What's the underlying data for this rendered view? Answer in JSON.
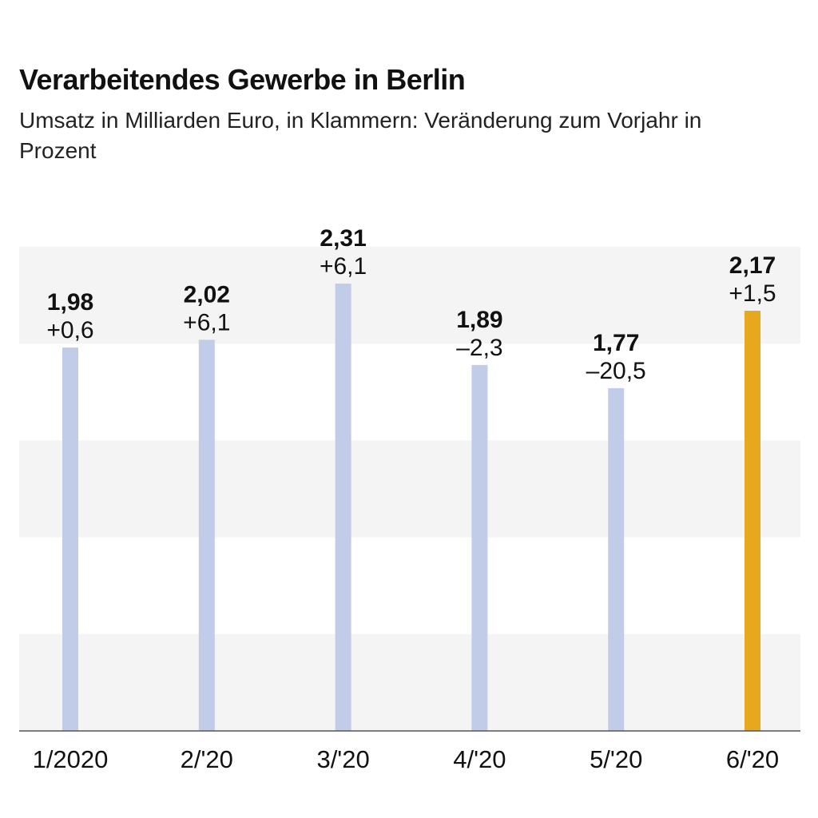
{
  "title": "Verarbeitendes Gewerbe in Berlin",
  "subtitle": "Umsatz in Milliarden Euro, in Klammern: Veränderung zum Vorjahr in Prozent",
  "colors": {
    "bar_default": "#c0cce8",
    "bar_highlight": "#e6a81d",
    "band": "#f4f4f4",
    "axis": "#555555"
  },
  "chart_data": {
    "type": "bar",
    "categories": [
      "1/2020",
      "2/'20",
      "3/'20",
      "4/'20",
      "5/'20",
      "6/'20"
    ],
    "values": [
      1.98,
      2.02,
      2.31,
      1.89,
      1.77,
      2.17
    ],
    "value_labels": [
      "1,98",
      "2,02",
      "2,31",
      "1,89",
      "1,77",
      "2,17"
    ],
    "change_labels": [
      "+0,6",
      "+6,1",
      "+6,1",
      "–2,3",
      "–20,5",
      "+1,5"
    ],
    "highlight_index": 5,
    "ylim": [
      0,
      2.5
    ],
    "band_step": 0.5,
    "grid": false
  }
}
